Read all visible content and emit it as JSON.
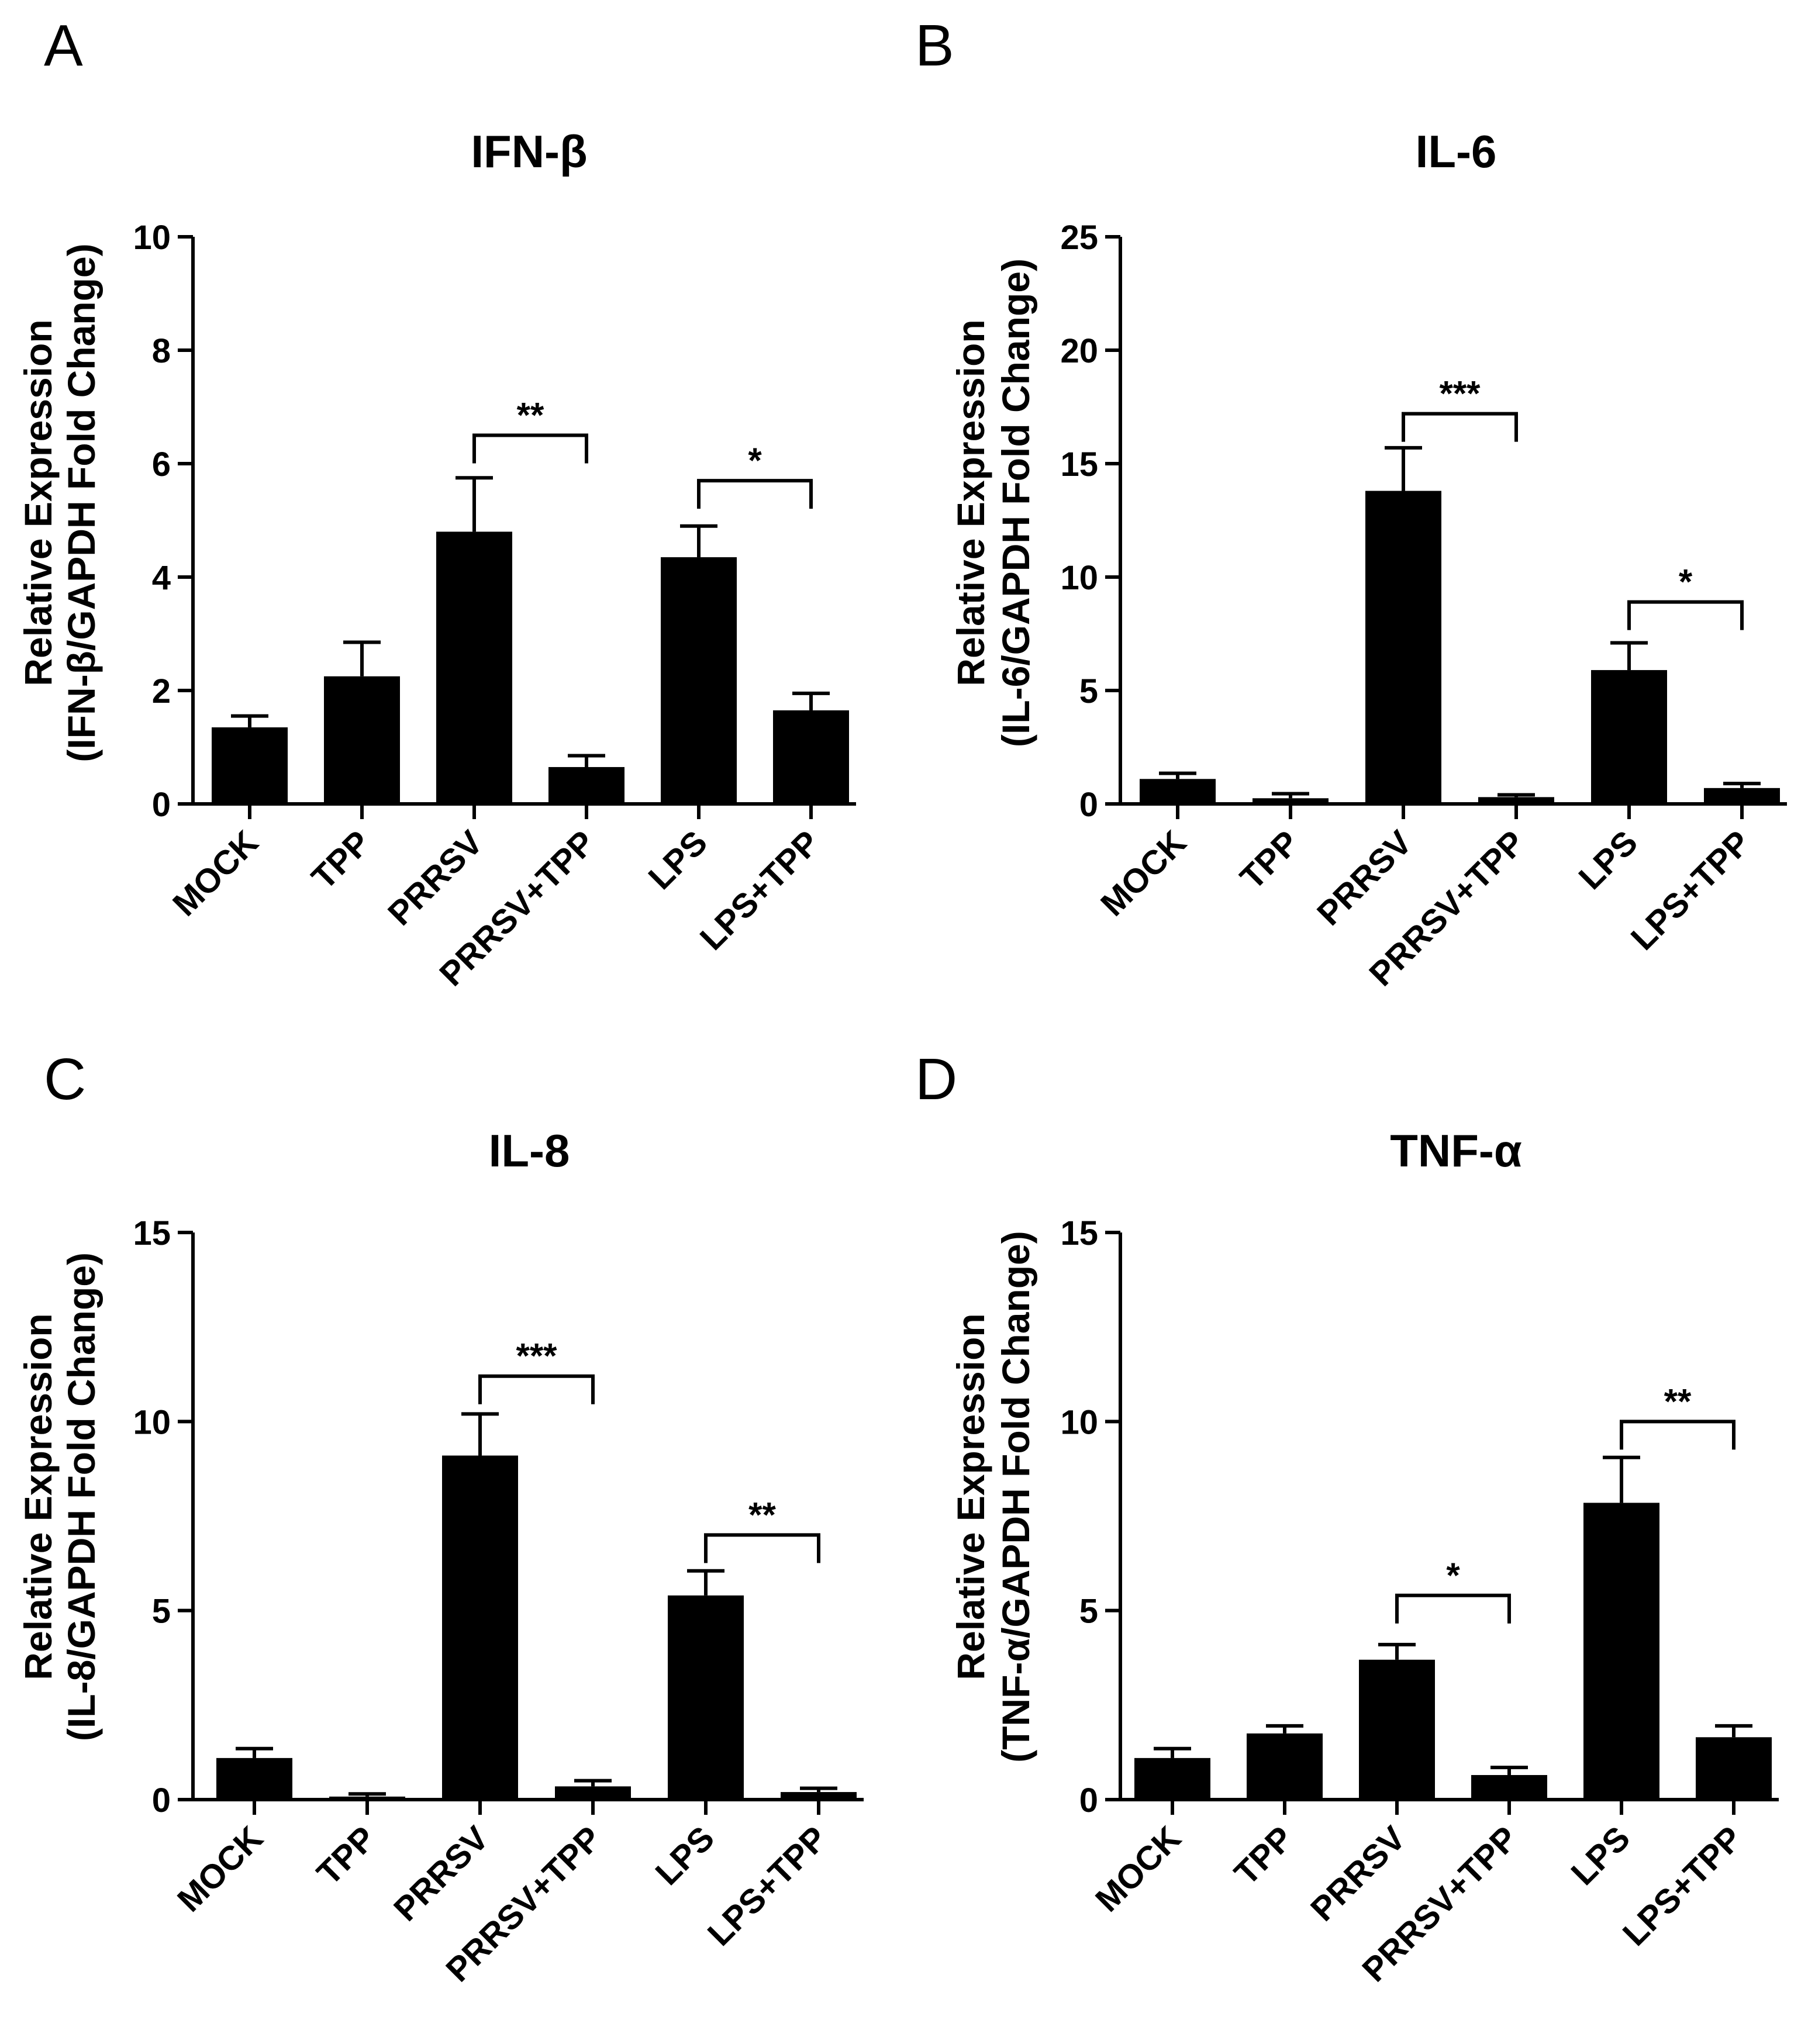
{
  "colors": {
    "bar": "#000000",
    "axis": "#000000",
    "background": "#ffffff"
  },
  "chart_data": [
    {
      "panel": "A",
      "type": "bar",
      "title": "IFN-β",
      "ylabel_line1": "Relative   Expression",
      "ylabel_line2": "(IFN-β/GAPDH Fold Change)",
      "categories": [
        "MOCK",
        "TPP",
        "PRRSV",
        "PRRSV+TPP",
        "LPS",
        "LPS+TPP"
      ],
      "values": [
        1.35,
        2.25,
        4.8,
        0.65,
        4.35,
        1.65
      ],
      "errors": [
        0.2,
        0.6,
        0.95,
        0.2,
        0.55,
        0.3
      ],
      "ylim": [
        0,
        10
      ],
      "yticks": [
        0,
        2,
        4,
        6,
        8,
        10
      ],
      "significance": [
        {
          "from": 2,
          "to": 3,
          "label": "**",
          "y": 6.5
        },
        {
          "from": 4,
          "to": 5,
          "label": "*",
          "y": 5.7
        }
      ]
    },
    {
      "panel": "B",
      "type": "bar",
      "title": "IL-6",
      "ylabel_line1": "Relative   Expression",
      "ylabel_line2": "(IL-6/GAPDH Fold Change)",
      "categories": [
        "MOCK",
        "TPP",
        "PRRSV",
        "PRRSV+TPP",
        "LPS",
        "LPS+TPP"
      ],
      "values": [
        1.1,
        0.25,
        13.8,
        0.3,
        5.9,
        0.7
      ],
      "errors": [
        0.25,
        0.2,
        1.9,
        0.1,
        1.2,
        0.2
      ],
      "ylim": [
        0,
        25
      ],
      "yticks": [
        0,
        5,
        10,
        15,
        20,
        25
      ],
      "significance": [
        {
          "from": 2,
          "to": 3,
          "label": "***",
          "y": 17.2
        },
        {
          "from": 4,
          "to": 5,
          "label": "*",
          "y": 8.9
        }
      ]
    },
    {
      "panel": "C",
      "type": "bar",
      "title": "IL-8",
      "ylabel_line1": "Relative   Expression",
      "ylabel_line2": "(IL-8/GAPDH Fold Change)",
      "categories": [
        "MOCK",
        "TPP",
        "PRRSV",
        "PRRSV+TPP",
        "LPS",
        "LPS+TPP"
      ],
      "values": [
        1.1,
        0.08,
        9.1,
        0.35,
        5.4,
        0.2
      ],
      "errors": [
        0.25,
        0.07,
        1.1,
        0.15,
        0.65,
        0.1
      ],
      "ylim": [
        0,
        15
      ],
      "yticks": [
        0,
        5,
        10,
        15
      ],
      "significance": [
        {
          "from": 2,
          "to": 3,
          "label": "***",
          "y": 11.2
        },
        {
          "from": 4,
          "to": 5,
          "label": "**",
          "y": 7.0
        }
      ]
    },
    {
      "panel": "D",
      "type": "bar",
      "title": "TNF-α",
      "ylabel_line1": "Relative   Expression",
      "ylabel_line2": "(TNF-α/GAPDH Fold Change)",
      "categories": [
        "MOCK",
        "TPP",
        "PRRSV",
        "PRRSV+TPP",
        "LPS",
        "LPS+TPP"
      ],
      "values": [
        1.1,
        1.75,
        3.7,
        0.65,
        7.85,
        1.65
      ],
      "errors": [
        0.25,
        0.2,
        0.4,
        0.2,
        1.2,
        0.3
      ],
      "ylim": [
        0,
        15
      ],
      "yticks": [
        0,
        5,
        10,
        15
      ],
      "significance": [
        {
          "from": 2,
          "to": 3,
          "label": "*",
          "y": 5.4
        },
        {
          "from": 4,
          "to": 5,
          "label": "**",
          "y": 10.0
        }
      ]
    }
  ]
}
